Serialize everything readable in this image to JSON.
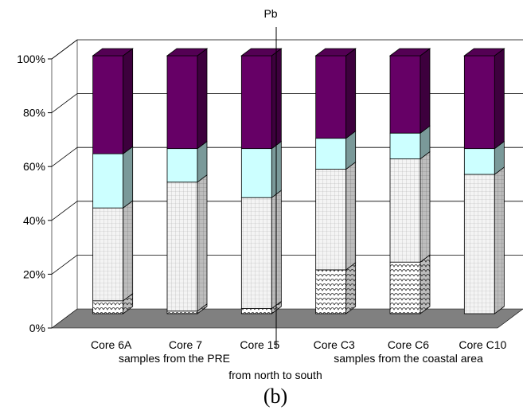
{
  "chart_data": {
    "type": "bar",
    "stacked": "percent",
    "title": "Pb",
    "panel_label": "(b)",
    "categories": [
      "Core 6A",
      "Core 7",
      "Core 15",
      "Core C3",
      "Core C6",
      "Core C10"
    ],
    "group_labels": [
      "samples from the PRE",
      "samples from the coastal area"
    ],
    "xlabel": "from north to south",
    "ylabel": "",
    "ylim": [
      0,
      100
    ],
    "yticks": [
      "0%",
      "20%",
      "40%",
      "60%",
      "80%",
      "100%"
    ],
    "grid": true,
    "legend": "none",
    "series": [
      {
        "values": [
          5,
          1,
          2,
          17,
          20,
          0
        ],
        "color": "#ffffff",
        "pattern": "scales"
      },
      {
        "values": [
          36,
          50,
          43,
          39,
          40,
          54
        ],
        "color": "#f2f2f2",
        "pattern": "grid"
      },
      {
        "values": [
          21,
          13,
          19,
          12,
          10,
          10
        ],
        "color": "#ccffff",
        "pattern": "solid"
      },
      {
        "values": [
          38,
          36,
          36,
          32,
          30,
          36
        ],
        "color": "#660066",
        "pattern": "solid"
      }
    ]
  }
}
